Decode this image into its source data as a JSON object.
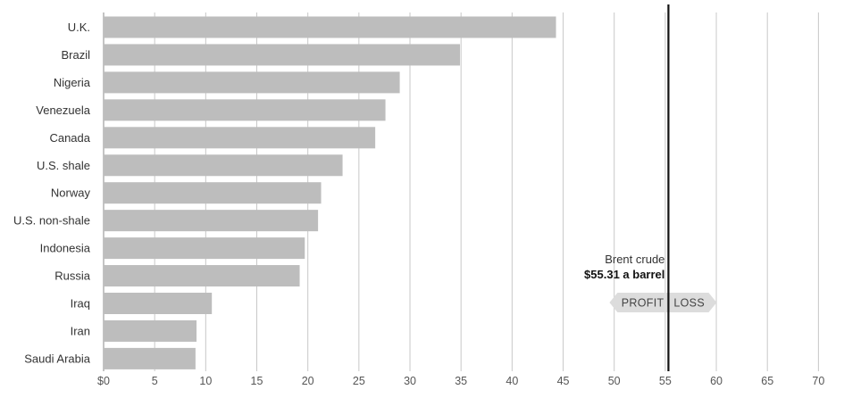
{
  "chart_data": {
    "type": "bar",
    "orientation": "horizontal",
    "categories": [
      "U.K.",
      "Brazil",
      "Nigeria",
      "Venezuela",
      "Canada",
      "U.S. shale",
      "Norway",
      "U.S. non-shale",
      "Indonesia",
      "Russia",
      "Iraq",
      "Iran",
      "Saudi Arabia"
    ],
    "values": [
      44.3,
      34.9,
      29.0,
      27.6,
      26.6,
      23.4,
      21.3,
      21.0,
      19.7,
      19.2,
      10.6,
      9.1,
      9.0
    ],
    "title": "",
    "xlabel": "",
    "ylabel": "",
    "xlim": [
      0,
      70
    ],
    "xticks": [
      0,
      5,
      10,
      15,
      20,
      25,
      30,
      35,
      40,
      45,
      50,
      55,
      60,
      65,
      70
    ],
    "xtick_labels": [
      "$0",
      "5",
      "10",
      "15",
      "20",
      "25",
      "30",
      "35",
      "40",
      "45",
      "50",
      "55",
      "60",
      "65",
      "70"
    ],
    "grid": "vertical",
    "bar_color": "#bdbdbd",
    "reference_line": {
      "value": 55.31,
      "label_line1": "Brent crude",
      "label_line2": "$55.31 a barrel",
      "left_label": "PROFIT",
      "right_label": "LOSS",
      "color": "#111111"
    }
  }
}
